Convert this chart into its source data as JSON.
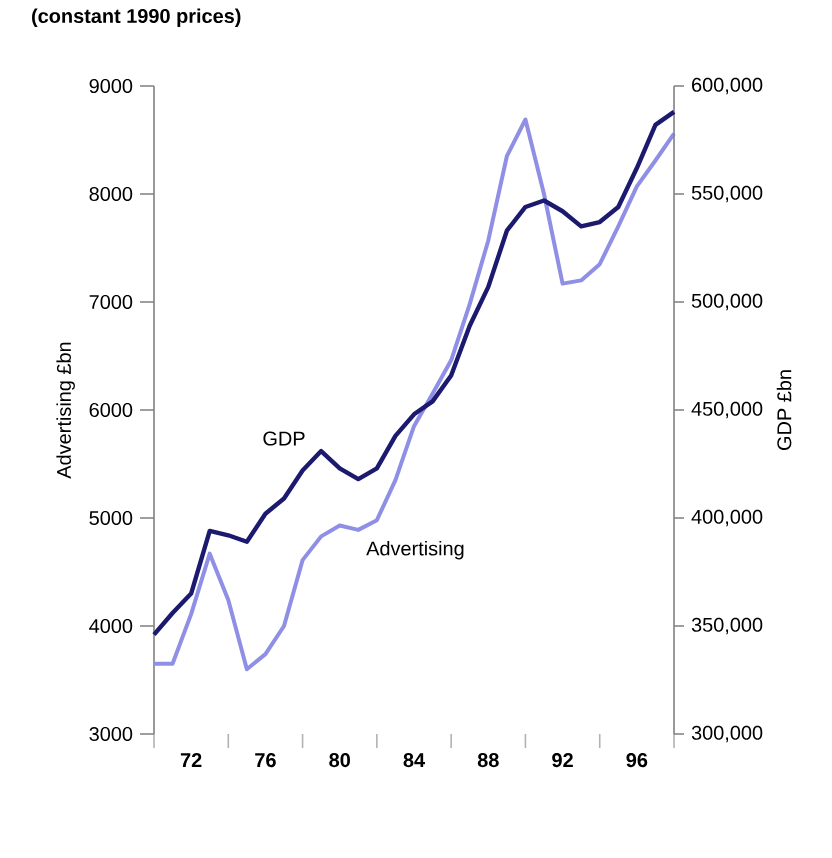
{
  "chart_data": {
    "type": "line",
    "title": "(constant 1990 prices)",
    "ylabel": "Advertising £bn",
    "y2label": "GDP £bn",
    "x": [
      1970,
      1971,
      1972,
      1973,
      1974,
      1975,
      1976,
      1977,
      1978,
      1979,
      1980,
      1981,
      1982,
      1983,
      1984,
      1985,
      1986,
      1987,
      1988,
      1989,
      1990,
      1991,
      1992,
      1993,
      1994,
      1995,
      1996,
      1997,
      1998
    ],
    "series": [
      {
        "name": "GDP",
        "color": "#1c1a6e",
        "axis": "y2",
        "values": [
          346000,
          356000,
          365000,
          394000,
          392000,
          389000,
          402000,
          409000,
          422000,
          431000,
          423000,
          418000,
          423000,
          438000,
          448000,
          454000,
          466000,
          489000,
          507000,
          533000,
          544000,
          547000,
          542000,
          535000,
          537000,
          544000,
          562000,
          582000,
          588000
        ]
      },
      {
        "name": "Advertising",
        "color": "#8f8fe6",
        "axis": "y",
        "values": [
          3650,
          3650,
          4110,
          4670,
          4240,
          3600,
          3740,
          4000,
          4610,
          4830,
          4930,
          4890,
          4980,
          5350,
          5850,
          6150,
          6460,
          6980,
          7570,
          8350,
          8690,
          8000,
          7170,
          7200,
          7350,
          7700,
          8070,
          8310,
          8560
        ]
      }
    ],
    "xlim": [
      1970,
      1998
    ],
    "xticks": [
      {
        "value": 1970,
        "label": null
      },
      {
        "value": 1972,
        "label": "72"
      },
      {
        "value": 1974,
        "label": null
      },
      {
        "value": 1976,
        "label": "76"
      },
      {
        "value": 1978,
        "label": null
      },
      {
        "value": 1980,
        "label": "80"
      },
      {
        "value": 1982,
        "label": null
      },
      {
        "value": 1984,
        "label": "84"
      },
      {
        "value": 1986,
        "label": null
      },
      {
        "value": 1988,
        "label": "88"
      },
      {
        "value": 1990,
        "label": null
      },
      {
        "value": 1992,
        "label": "92"
      },
      {
        "value": 1994,
        "label": null
      },
      {
        "value": 1996,
        "label": "96"
      },
      {
        "value": 1998,
        "label": null
      }
    ],
    "ylim": [
      3000,
      9000
    ],
    "yticks": [
      3000,
      4000,
      5000,
      6000,
      7000,
      8000,
      9000
    ],
    "y2lim": [
      300000,
      600000
    ],
    "y2ticks": [
      {
        "value": 300000,
        "label": "300,000"
      },
      {
        "value": 350000,
        "label": "350,000"
      },
      {
        "value": 400000,
        "label": "400,000"
      },
      {
        "value": 450000,
        "label": "450,000"
      },
      {
        "value": 500000,
        "label": "500,000"
      },
      {
        "value": 550000,
        "label": "550,000"
      },
      {
        "value": 600000,
        "label": "600,000"
      }
    ]
  }
}
